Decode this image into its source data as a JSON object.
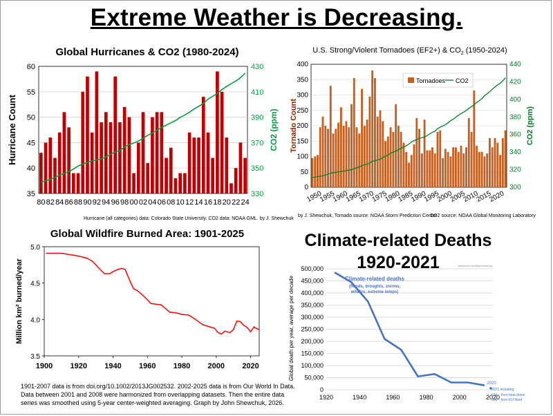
{
  "page_title": "Extreme Weather is Decreasing.",
  "chart_data": [
    {
      "type": "bar",
      "title": "Global Hurricanes & CO2  (1980-2024)",
      "ylabel": "Hurricane Count",
      "y2label": "CO2 (ppm)",
      "ylim": [
        35,
        60
      ],
      "yticks": [
        35,
        40,
        45,
        50,
        55,
        60
      ],
      "y2lim": [
        330,
        430
      ],
      "y2ticks": [
        330,
        350,
        370,
        390,
        410,
        430
      ],
      "xticks": [
        "80",
        "82",
        "84",
        "86",
        "88",
        "90",
        "92",
        "94",
        "96",
        "98",
        "00",
        "02",
        "04",
        "06",
        "08",
        "10",
        "12",
        "14",
        "16",
        "18",
        "20",
        "22",
        "24"
      ],
      "series": [
        {
          "values": [
            43,
            45,
            46,
            42,
            47,
            51,
            48,
            39,
            39,
            55,
            58,
            47,
            59,
            49,
            51,
            49,
            58,
            49,
            52,
            50,
            39,
            45,
            51,
            41,
            50,
            51,
            51,
            42,
            44,
            38,
            39,
            39,
            47,
            46,
            46,
            54,
            47,
            42,
            59,
            55,
            46,
            37,
            40,
            45,
            42
          ]
        },
        {
          "values": [
            338.8,
            340.0,
            341.1,
            342.8,
            344.4,
            345.9,
            347.2,
            349.2,
            351.6,
            353.1,
            354.4,
            355.6,
            356.4,
            357.1,
            358.8,
            360.8,
            362.6,
            363.7,
            366.7,
            368.4,
            369.7,
            371.3,
            373.4,
            375.8,
            377.5,
            379.8,
            381.9,
            383.8,
            385.6,
            387.4,
            389.9,
            391.7,
            393.9,
            396.5,
            398.6,
            400.8,
            404.2,
            406.5,
            408.7,
            411.7,
            414.2,
            416.4,
            418.5,
            421.1,
            424.6
          ]
        }
      ],
      "colors": {
        "bars": "#c00000",
        "line": "#00a040"
      },
      "footnote": "Hurricane (all categories) data: Colorado State University.      CO2 data: NOAA GML.     by J. Shewchuk"
    },
    {
      "type": "bar",
      "title": "U.S. Strong/Violent Tornadoes (EF2+) & CO",
      "title_sub": "2",
      "title_years": "(1950-2024)",
      "ylabel": "Tornado Count",
      "y2label": "CO2 (ppm)",
      "ylim": [
        0,
        400
      ],
      "yticks": [
        0,
        50,
        100,
        150,
        200,
        250,
        300,
        350,
        400
      ],
      "y2lim": [
        300,
        440
      ],
      "y2ticks": [
        300,
        320,
        340,
        360,
        380,
        400,
        420,
        440
      ],
      "xticks": [
        "1950",
        "1955",
        "1960",
        "1965",
        "1970",
        "1975",
        "1980",
        "1985",
        "1990",
        "1995",
        "2000",
        "2005",
        "2010",
        "2015",
        "2020"
      ],
      "legend": [
        "Tornadoes",
        "CO2"
      ],
      "series": [
        {
          "values": [
            95,
            100,
            105,
            195,
            230,
            200,
            190,
            330,
            175,
            190,
            210,
            260,
            200,
            215,
            195,
            270,
            355,
            195,
            175,
            320,
            200,
            220,
            295,
            380,
            355,
            230,
            250,
            215,
            150,
            165,
            195,
            180,
            270,
            200,
            180,
            145,
            115,
            80,
            105,
            140,
            225,
            190,
            110,
            220,
            120,
            120,
            130,
            110,
            180,
            185,
            95,
            125,
            115,
            100,
            130,
            130,
            115,
            135,
            110,
            130,
            225,
            180,
            315,
            135,
            115,
            115,
            100,
            110,
            160,
            130,
            160,
            145,
            105,
            160,
            185
          ]
        },
        {
          "values": [
            311,
            311.5,
            312,
            312.5,
            313,
            314,
            315,
            316,
            316.5,
            317,
            317.5,
            318,
            318.5,
            319,
            319.6,
            320,
            321.1,
            322.1,
            323,
            324.6,
            325.7,
            326.3,
            327.5,
            329.7,
            330.2,
            331.1,
            332,
            333.8,
            335.4,
            336.8,
            338.8,
            340,
            341.1,
            342.8,
            344.4,
            345.9,
            347.2,
            349.2,
            351.6,
            353.1,
            354.4,
            355.6,
            356.4,
            357.1,
            358.8,
            360.8,
            362.6,
            363.7,
            366.7,
            368.4,
            369.7,
            371.3,
            373.4,
            375.8,
            377.5,
            379.8,
            381.9,
            383.8,
            385.6,
            387.4,
            389.9,
            391.7,
            393.9,
            396.5,
            398.6,
            400.8,
            404.2,
            406.5,
            408.7,
            411.7,
            414.2,
            416.4,
            418.5,
            421.1,
            424.6
          ]
        }
      ],
      "colors": {
        "bars": "#c56020",
        "line": "#00802a"
      },
      "footnote_left": "by J. Shewchuk,    Tornado source: NOAA Storm Prediction Center",
      "footnote_right": "CO2 source: NOAA Global Monitoring Laboratory"
    },
    {
      "type": "line",
      "title": "Global Wildfire Burned Area: 1901-2025",
      "ylabel": "Million km² burned/year",
      "xlim": [
        1900,
        2025
      ],
      "ylim": [
        3.5,
        5.0
      ],
      "xticks": [
        1900,
        1920,
        1940,
        1960,
        1980,
        2000,
        2020
      ],
      "yticks": [
        3.5,
        4.0,
        4.5,
        5.0
      ],
      "x": [
        1901,
        1905,
        1910,
        1915,
        1918,
        1922,
        1925,
        1928,
        1932,
        1935,
        1938,
        1941,
        1943,
        1945,
        1947,
        1950,
        1952,
        1954,
        1957,
        1960,
        1962,
        1965,
        1968,
        1970,
        1973,
        1977,
        1980,
        1984,
        1988,
        1992,
        1996,
        1999,
        2001,
        2003,
        2005,
        2008,
        2010,
        2012,
        2014,
        2016,
        2018,
        2020,
        2022,
        2023,
        2025
      ],
      "y": [
        4.91,
        4.91,
        4.91,
        4.89,
        4.88,
        4.86,
        4.84,
        4.8,
        4.7,
        4.63,
        4.63,
        4.67,
        4.69,
        4.7,
        4.69,
        4.52,
        4.42,
        4.4,
        4.34,
        4.27,
        4.22,
        4.21,
        4.2,
        4.16,
        4.1,
        4.09,
        4.07,
        4.06,
        4.0,
        3.93,
        3.9,
        3.88,
        3.82,
        3.8,
        3.84,
        3.82,
        3.86,
        3.98,
        3.97,
        3.92,
        3.89,
        3.83,
        3.9,
        3.88,
        3.86
      ],
      "color": "#ff0000",
      "footnote_lines": [
        "1901-2007 data is from doi.org/10.1002/2013JG002532.  2002-2025 data is from Our World In Data.",
        "Data between 2001 and 2008 were harmonized from overlapping datasets.  Then the entire data",
        "series was smoothed using 5-year center-weighted averaging.        Graph by John Shewchuk, 2026."
      ]
    },
    {
      "type": "line",
      "title_line1": "Climate-related Deaths",
      "title_line2": "1920-2021",
      "ylabel": "Global death per year, average per decade",
      "ylim": [
        0,
        500000
      ],
      "yticks": [
        "0",
        "50,000",
        "100,000",
        "150,000",
        "200,000",
        "250,000",
        "300,000",
        "350,000",
        "400,000",
        "450,000",
        "500,000"
      ],
      "xticks": [
        "1920",
        "1940",
        "1960",
        "1980",
        "2000",
        "2020"
      ],
      "x": [
        1925,
        1935,
        1945,
        1955,
        1965,
        1975,
        1985,
        1995,
        2005,
        2015
      ],
      "y": [
        485000,
        445000,
        365000,
        210000,
        165000,
        55000,
        65000,
        30000,
        30000,
        18000
      ],
      "color": "#4472c4",
      "annotation_title": "Climate-related deaths",
      "annotation_lines": [
        "(floods, droughts, storms,",
        "wildfire, extreme temps)"
      ],
      "point_label": "2020",
      "note_lines": [
        "2021 including:",
        "624 ↑ from heat dome",
        "358 ↑ from EU flood"
      ],
      "source_tag": "facebook.com/bjornlomborg"
    }
  ]
}
